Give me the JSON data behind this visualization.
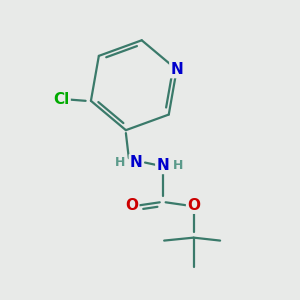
{
  "background_color": "#e8eae8",
  "bond_color": "#3a7a6a",
  "bond_width": 1.6,
  "atom_colors": {
    "N": "#0000cc",
    "O": "#cc0000",
    "Cl": "#00aa00",
    "H_label": "#5a9a8a"
  },
  "font_size_atoms": 11,
  "font_size_H": 9,
  "figsize": [
    3.0,
    3.0
  ],
  "dpi": 100
}
